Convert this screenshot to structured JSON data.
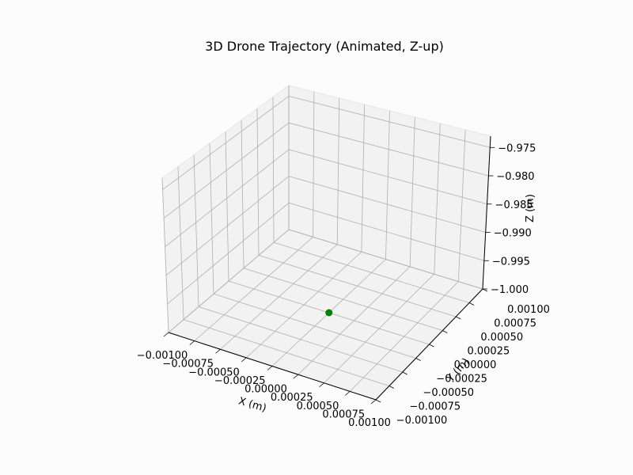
{
  "chart_data": {
    "type": "scatter",
    "title": "3D Drone Trajectory (Animated, Z-up)",
    "xlabel": "X (m)",
    "ylabel": "Y (m)",
    "zlabel": "Z (m)",
    "grid": true,
    "x_ticks": [
      "−0.00100",
      "−0.00075",
      "−0.00050",
      "−0.00025",
      "0.00000",
      "0.00025",
      "0.00050",
      "0.00075",
      "0.00100"
    ],
    "y_ticks": [
      "−0.00100",
      "−0.00075",
      "−0.00050",
      "−0.00025",
      "0.00000",
      "0.00025",
      "0.00050",
      "0.00075",
      "0.00100"
    ],
    "z_ticks": [
      "−1.000",
      "−0.995",
      "−0.990",
      "−0.985",
      "−0.980",
      "−0.975"
    ],
    "xlim": [
      -0.001,
      0.001
    ],
    "ylim": [
      -0.001,
      0.001
    ],
    "zlim": [
      -1.0,
      -0.973
    ],
    "points": [
      {
        "x": 0.0,
        "y": 0.0,
        "z": -1.0
      }
    ],
    "marker_color": "#008000"
  },
  "colors": {
    "pane": "#f2f2f2",
    "grid": "#b0b0b0",
    "axis": "#000000"
  }
}
